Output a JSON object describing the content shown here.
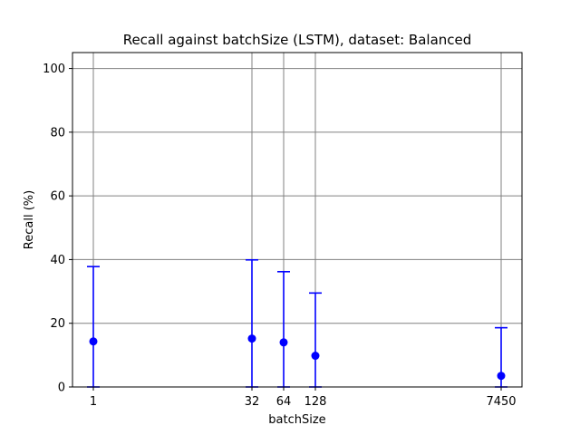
{
  "chart_data": {
    "type": "scatter",
    "title": "Recall against batchSize (LSTM), dataset: Balanced",
    "xlabel": "batchSize",
    "ylabel": "Recall (%)",
    "ylim": [
      0,
      105
    ],
    "y_ticks": [
      0,
      20,
      40,
      60,
      80,
      100
    ],
    "x_tick_labels": [
      "1",
      "32",
      "64",
      "128",
      "7450"
    ],
    "x_scale": "categorical (log-like spacing)",
    "grid": true,
    "point_color": "#0000ff",
    "grid_color": "#808080",
    "series": [
      {
        "x": [
          "1",
          "32",
          "64",
          "128",
          "7450"
        ],
        "values": [
          14.3,
          15.2,
          14.0,
          9.8,
          3.5
        ],
        "error_low": [
          0,
          0,
          0,
          0,
          0
        ],
        "error_high": [
          37.8,
          39.9,
          36.2,
          29.5,
          18.6
        ]
      }
    ]
  }
}
